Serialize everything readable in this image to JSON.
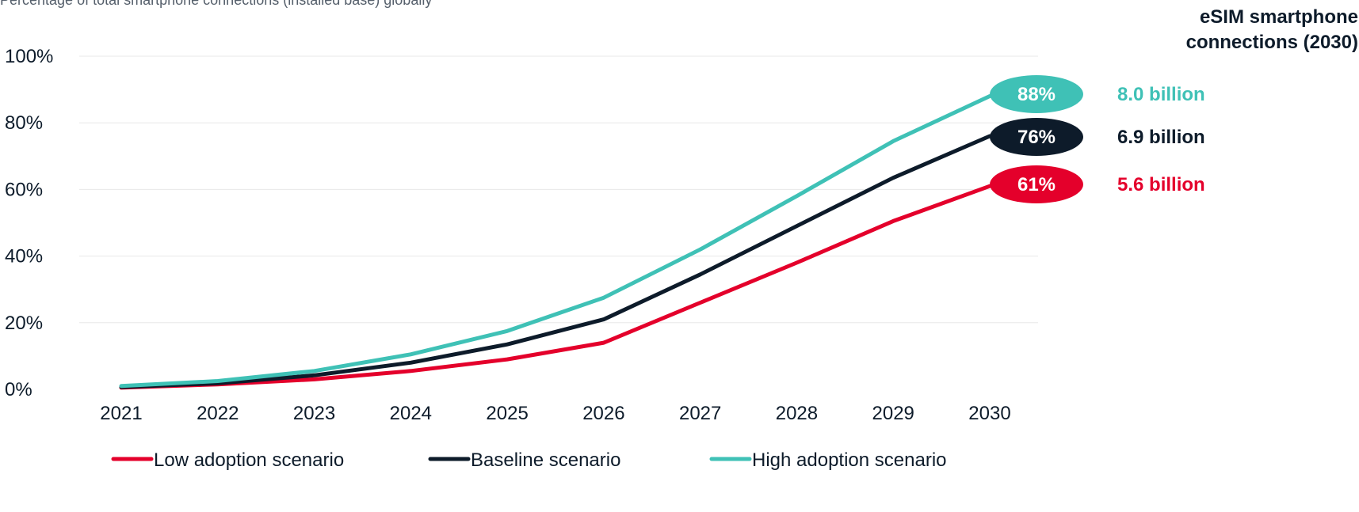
{
  "subtitle": "Percentage of total smartphone connections (installed base) globally",
  "side_header": "eSIM smartphone connections (2030)",
  "chart_data": {
    "type": "line",
    "title": "",
    "xlabel": "",
    "ylabel": "",
    "x": [
      "2021",
      "2022",
      "2023",
      "2024",
      "2025",
      "2026",
      "2027",
      "2028",
      "2029",
      "2030"
    ],
    "ylim": [
      0,
      100
    ],
    "yticks": [
      "0%",
      "20%",
      "40%",
      "60%",
      "80%",
      "100%"
    ],
    "grid": true,
    "legend_position": "bottom",
    "series": [
      {
        "name": "Low adoption scenario",
        "color": "#e4002b",
        "values": [
          0.5,
          1.5,
          3.0,
          5.5,
          9.0,
          14.0,
          26.0,
          38.0,
          50.5,
          61.0
        ],
        "end_label": "61%",
        "connections_2030": "5.6 billion"
      },
      {
        "name": "Baseline scenario",
        "color": "#0d1b2a",
        "values": [
          0.7,
          1.8,
          4.2,
          8.0,
          13.5,
          21.0,
          34.5,
          49.0,
          63.5,
          76.0
        ],
        "end_label": "76%",
        "connections_2030": "6.9 billion"
      },
      {
        "name": "High adoption scenario",
        "color": "#3fc1b6",
        "values": [
          1.0,
          2.5,
          5.5,
          10.5,
          17.5,
          27.5,
          42.0,
          58.0,
          74.5,
          88.0
        ],
        "end_label": "88%",
        "connections_2030": "8.0 billion"
      }
    ]
  }
}
